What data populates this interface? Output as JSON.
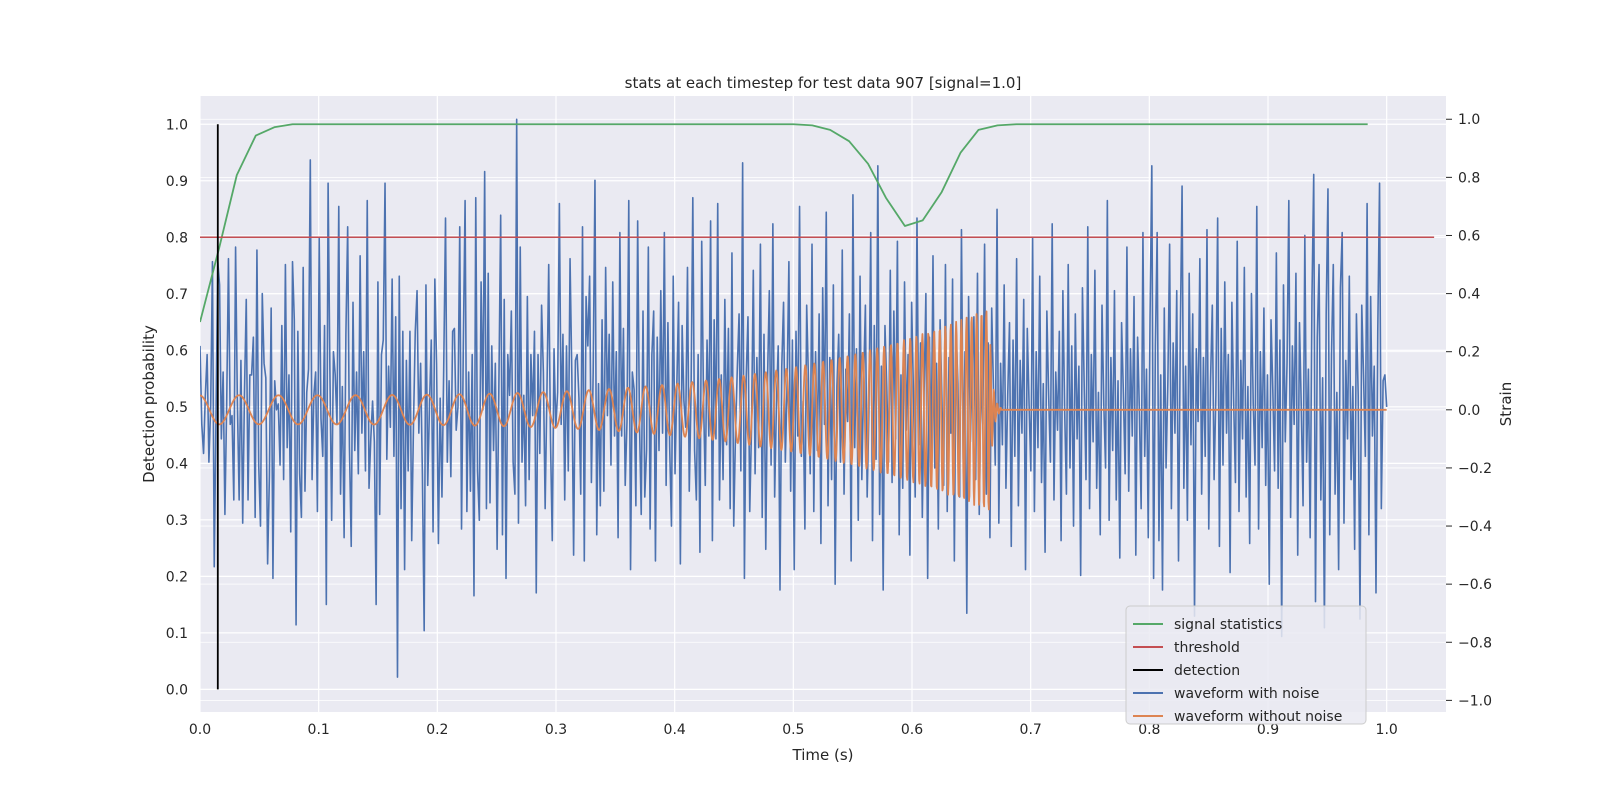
{
  "chart_data": {
    "type": "line",
    "title": "stats at each timestep for test data 907 [signal=1.0]",
    "xlabel": "Time (s)",
    "ylabel_left": "Detection probability",
    "ylabel_right": "Strain",
    "xlim": [
      0.0,
      1.05
    ],
    "ylim_left": [
      -0.04,
      1.05
    ],
    "ylim_right": [
      -1.04,
      1.08
    ],
    "x_ticks": [
      0.0,
      0.1,
      0.2,
      0.3,
      0.4,
      0.5,
      0.6,
      0.7,
      0.8,
      0.9,
      1.0
    ],
    "x_tick_labels": [
      "0.0",
      "0.1",
      "0.2",
      "0.3",
      "0.4",
      "0.5",
      "0.6",
      "0.7",
      "0.8",
      "0.9",
      "1.0"
    ],
    "y_left_ticks": [
      0.0,
      0.1,
      0.2,
      0.3,
      0.4,
      0.5,
      0.6,
      0.7,
      0.8,
      0.9,
      1.0
    ],
    "y_left_tick_labels": [
      "0.0",
      "0.1",
      "0.2",
      "0.3",
      "0.4",
      "0.5",
      "0.6",
      "0.7",
      "0.8",
      "0.9",
      "1.0"
    ],
    "y_right_ticks": [
      -1.0,
      -0.8,
      -0.6,
      -0.4,
      -0.2,
      0.0,
      0.2,
      0.4,
      0.6,
      0.8,
      1.0
    ],
    "y_right_tick_labels": [
      "−1.0",
      "−0.8",
      "−0.6",
      "−0.4",
      "−0.2",
      "0.0",
      "0.2",
      "0.4",
      "0.6",
      "0.8",
      "1.0"
    ],
    "grid": true,
    "legend_position": "lower-right",
    "series": [
      {
        "name": "signal statistics",
        "axis": "left",
        "color": "#55a868",
        "x": [
          0.0,
          0.016,
          0.031,
          0.047,
          0.063,
          0.078,
          0.094,
          0.2,
          0.3,
          0.4,
          0.5,
          0.516,
          0.531,
          0.547,
          0.563,
          0.578,
          0.594,
          0.609,
          0.625,
          0.641,
          0.656,
          0.672,
          0.688,
          0.8,
          0.9,
          0.984
        ],
        "y": [
          0.65,
          0.78,
          0.91,
          0.98,
          0.995,
          1.0,
          1.0,
          1.0,
          1.0,
          1.0,
          1.0,
          0.998,
          0.99,
          0.97,
          0.93,
          0.87,
          0.82,
          0.83,
          0.88,
          0.95,
          0.99,
          0.998,
          1.0,
          1.0,
          1.0,
          1.0
        ]
      },
      {
        "name": "threshold",
        "axis": "left",
        "color": "#c44e52",
        "x": [
          0.0,
          1.04
        ],
        "y": [
          0.8,
          0.8
        ]
      },
      {
        "name": "detection",
        "axis": "left",
        "color": "#000000",
        "x": [
          0.015,
          0.015
        ],
        "y": [
          0.0,
          1.0
        ]
      },
      {
        "name": "waveform with noise",
        "axis": "right",
        "color": "#4c72b0",
        "x_start": 0.0,
        "x_end": 1.0,
        "y": [
          0.22,
          -0.05,
          -0.15,
          0.05,
          0.19,
          -0.18,
          0.01,
          0.51,
          -0.54,
          -0.02,
          0.51,
          0.43,
          -0.1,
          0.13,
          -0.36,
          0.02,
          0.52,
          -0.05,
          -0.02,
          -0.31,
          0.56,
          0.03,
          -0.31,
          0.17,
          -0.39,
          0.06,
          0.38,
          -0.31,
          0.12,
          0.12,
          0.25,
          -0.37,
          0.55,
          -0.19,
          -0.4,
          0.4,
          0.16,
          0.11,
          -0.53,
          -0.23,
          0.35,
          -0.58,
          0.1,
          0.0,
          0.02,
          -0.19,
          0.29,
          -0.24,
          0.5,
          -0.13,
          0.12,
          -0.42,
          0.51,
          0.31,
          -0.74,
          0.27,
          -0.22,
          -0.37,
          0.49,
          -0.28,
          0.06,
          0.14,
          0.86,
          -0.24,
          0.05,
          0.13,
          -0.35,
          0.59,
          -0.03,
          -0.16,
          0.29,
          -0.67,
          0.78,
          0.14,
          -0.38,
          0.2,
          0.12,
          -0.05,
          0.7,
          -0.29,
          0.08,
          -0.44,
          0.26,
          0.63,
          -0.13,
          -0.47,
          0.37,
          -0.14,
          0.13,
          -0.22,
          0.53,
          -0.08,
          0.2,
          -0.21,
          0.72,
          -0.27,
          -0.1,
          0.03,
          -0.11,
          -0.67,
          0.44,
          -0.36,
          0.19,
          0.24,
          0.78,
          -0.17,
          0.15,
          -0.06,
          0.45,
          -0.16,
          0.32,
          -0.92,
          0.46,
          -0.34,
          0.27,
          -0.55,
          0.17,
          -0.21,
          0.27,
          -0.45,
          -0.05,
          0.27,
          0.41,
          -0.08,
          0.16,
          -0.22,
          -0.76,
          0.43,
          -0.26,
          0.02,
          0.24,
          -0.42,
          0.45,
          0.16,
          -0.46,
          0.04,
          -0.3,
          0.15,
          0.66,
          -0.18,
          0.1,
          -0.23,
          0.27,
          0.28,
          -0.07,
          0.01,
          0.63,
          -0.41,
          0.22,
          0.72,
          -0.35,
          0.13,
          -0.28,
          0.19,
          -0.64,
          0.73,
          -0.21,
          -0.38,
          0.44,
          0.0,
          0.82,
          -0.34,
          0.47,
          -0.32,
          0.22,
          -0.14,
          0.16,
          -0.48,
          0.09,
          0.67,
          -0.43,
          0.38,
          -0.58,
          0.19,
          0.05,
          0.34,
          -0.18,
          -0.29,
          1.0,
          -0.39,
          0.56,
          -0.18,
          0.05,
          -0.33,
          0.39,
          -0.24,
          0.19,
          -0.02,
          0.27,
          -0.63,
          0.19,
          -0.15,
          0.36,
          0.13,
          -0.34,
          0.06,
          0.5,
          -0.1,
          -0.45,
          0.21,
          -0.06,
          0.06,
          0.71,
          -0.05,
          0.26,
          -0.31,
          0.22,
          -0.21,
          0.52,
          0.12,
          -0.5,
          0.17,
          0.19,
          0.04,
          -0.29,
          0.63,
          -0.52,
          0.39,
          0.22,
          0.46,
          -0.25,
          0.13,
          0.79,
          -0.43,
          0.09,
          -0.33,
          0.31,
          -0.28,
          0.49,
          -0.02,
          0.26,
          -0.19,
          0.44,
          -0.09,
          0.2,
          -0.44,
          0.61,
          -0.09,
          0.28,
          -0.26,
          -0.04,
          0.72,
          -0.55,
          0.13,
          0.07,
          -0.33,
          0.65,
          -0.04,
          -0.36,
          0.34,
          -0.3,
          -0.14,
          0.56,
          -0.41,
          0.19,
          0.34,
          -0.52,
          0.25,
          -0.14,
          0.41,
          -0.08,
          0.61,
          -0.26,
          0.3,
          -0.13,
          -0.4,
          0.46,
          -0.22,
          0.08,
          0.37,
          -0.53,
          0.29,
          0.03,
          -0.06,
          0.49,
          -0.28,
          0.05,
          0.73,
          -0.14,
          -0.31,
          0.19,
          -0.49,
          0.58,
          0.04,
          -0.26,
          0.24,
          -0.09,
          0.65,
          -0.45,
          0.31,
          -0.1,
          0.71,
          -0.31,
          0.12,
          -0.24,
          0.38,
          -0.12,
          0.28,
          -0.34,
          0.54,
          -0.4,
          -0.08,
          0.14,
          0.33,
          -0.21,
          0.85,
          -0.58,
          0.11,
          0.32,
          -0.35,
          -0.06,
          0.48,
          -0.22,
          0.18,
          -0.13,
          0.57,
          -0.37,
          0.26,
          -0.48,
          0.11,
          0.41,
          -0.19,
          0.64,
          -0.3,
          0.02,
          0.22,
          -0.62,
          0.15,
          0.37,
          -0.18,
          0.09,
          0.51,
          -0.28,
          0.24,
          -0.55,
          0.27,
          -0.09,
          0.7,
          -0.16,
          0.03,
          -0.41,
          0.36,
          0.1,
          -0.22,
          0.57,
          -0.35,
          0.2,
          -0.14,
          0.33,
          -0.46,
          0.42,
          -0.05,
          0.68,
          -0.33,
          0.18,
          -0.24,
          0.43,
          -0.6,
          0.08,
          0.26,
          -0.18,
          0.55,
          -0.29,
          0.14,
          -0.04,
          0.33,
          -0.52,
          0.74,
          -0.13,
          0.21,
          -0.38,
          0.46,
          -0.24,
          0.1,
          0.36,
          -0.3,
          0.0,
          0.61,
          -0.45,
          0.29,
          -0.17,
          0.84,
          -0.36,
          0.15,
          -0.62,
          0.29,
          0.08,
          -0.18,
          0.48,
          -0.25,
          0.34,
          -0.1,
          0.58,
          -0.43,
          0.12,
          -0.27,
          0.44,
          -0.07,
          0.19,
          -0.5,
          0.37,
          0.06,
          -0.3,
          0.66,
          -0.12,
          0.23,
          -0.37,
          0.06,
          0.4,
          -0.58,
          0.25,
          -0.15,
          0.53,
          -0.2,
          0.16,
          -0.41,
          0.31,
          0.04,
          -0.26,
          0.5,
          -0.35,
          0.18,
          -0.08,
          0.45,
          -0.52,
          0.27,
          0.09,
          -0.3,
          0.62,
          -0.17,
          0.2,
          -0.7,
          0.39,
          -0.11,
          0.14,
          0.32,
          -0.24,
          0.47,
          -0.36,
          0.12,
          -0.05,
          0.57,
          -0.29,
          0.23,
          -0.44,
          0.35,
          0.07,
          -0.19,
          0.69,
          -0.39,
          0.16,
          -0.12,
          0.43,
          -0.27,
          0.05,
          0.3,
          -0.47,
          0.24,
          -0.16,
          0.52,
          -0.33,
          0.17,
          -0.08,
          0.38,
          -0.55,
          0.28,
          0.02,
          -0.21,
          0.59,
          -0.35,
          0.2,
          -0.13,
          0.46,
          -0.25,
          0.09,
          -0.49,
          0.34,
          0.05,
          -0.18,
          0.64,
          -0.31,
          0.13,
          -0.07,
          0.27,
          -0.45,
          0.41,
          0.0,
          -0.29,
          0.5,
          -0.2,
          0.22,
          -0.4,
          0.33,
          -0.1,
          0.15,
          -0.57,
          0.42,
          0.08,
          -0.24,
          0.63,
          -0.34,
          0.19,
          -0.11,
          0.48,
          -0.27,
          0.06,
          -0.43,
          0.36,
          0.02,
          -0.2,
          0.72,
          -0.38,
          0.18,
          -0.14,
          0.41,
          -0.31,
          0.1,
          -0.51,
          0.3,
          0.06,
          -0.22,
          0.56,
          -0.28,
          0.21,
          -0.09,
          0.39,
          -0.5,
          0.25,
          0.0,
          -0.34,
          0.61,
          -0.16,
          0.14,
          -0.44,
          0.32,
          0.84,
          -0.58,
          0.22,
          0.61,
          -0.45,
          0.12,
          -0.62,
          0.35,
          -0.2,
          0.09,
          0.57,
          -0.34,
          0.23,
          -0.08,
          0.41,
          -0.52,
          0.26,
          0.77,
          -0.27,
          0.15,
          -0.38,
          0.47,
          -0.12,
          0.33,
          -0.71,
          0.21,
          -0.04,
          0.52,
          -0.29,
          0.18,
          -0.16,
          0.62,
          -0.41,
          0.1,
          0.36,
          -0.24,
          0.05,
          0.66,
          -0.47,
          0.28,
          -0.19,
          0.44,
          -0.08,
          0.19,
          -0.56,
          0.37,
          0.03,
          -0.25,
          0.58,
          -0.35,
          0.17,
          -0.1,
          0.49,
          -0.3,
          0.08,
          -0.46,
          0.4,
          0.02,
          -0.19,
          0.7,
          -0.41,
          0.2,
          -0.13,
          0.35,
          -0.26,
          0.12,
          -0.6,
          0.31,
          0.07,
          -0.21,
          0.54,
          -0.27,
          0.24,
          -0.78,
          0.43,
          -0.11,
          0.16,
          0.72,
          -0.37,
          0.22,
          -0.05,
          0.47,
          -0.5,
          0.3,
          0.01,
          -0.33,
          0.6,
          -0.18,
          0.14,
          -0.44,
          0.38,
          0.81,
          -0.66,
          0.25,
          0.5,
          -0.31,
          0.11,
          -0.75,
          0.33,
          0.76,
          -0.43,
          0.19,
          0.5,
          -0.29,
          0.06,
          -0.55,
          0.42,
          0.61,
          -0.39,
          0.17,
          -0.1,
          0.46,
          -0.24,
          0.08,
          -0.48,
          0.33,
          0.05,
          -0.72,
          0.36,
          0.12,
          -0.16,
          0.71,
          -0.43,
          0.39,
          -0.09,
          0.15,
          -0.63,
          0.27,
          0.78,
          -0.34,
          0.1,
          0.12,
          0.01
        ]
      },
      {
        "name": "waveform without noise",
        "axis": "right",
        "color": "#dd8452",
        "freq_start_hz": 30,
        "freq_end_hz": 250,
        "amp_start": 0.05,
        "amp_peak": 0.35,
        "t_merger": 0.665,
        "t_ringdown_end": 0.675,
        "x_end": 1.0
      }
    ]
  }
}
